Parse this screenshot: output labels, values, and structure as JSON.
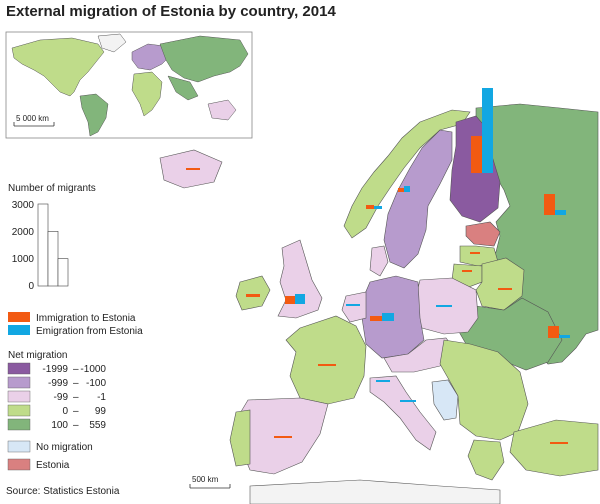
{
  "title": "External migration of Estonia by country, 2014",
  "source": "Source: Statistics Estonia",
  "inset": {
    "scale_label": "5 000 km"
  },
  "main_map": {
    "scale_label": "500 km"
  },
  "migrants_scale": {
    "title": "Number of migrants",
    "ticks": [
      "3000",
      "2000",
      "1000",
      "0"
    ],
    "values": [
      3000,
      2000,
      1000
    ]
  },
  "bar_legend": {
    "immigration": {
      "label": "Immigration to Estonia",
      "color": "#f25a12"
    },
    "emigration": {
      "label": "Emigration from Estonia",
      "color": "#12a7e2"
    }
  },
  "net_migration": {
    "title": "Net migration",
    "classes": [
      {
        "from": "-1999",
        "to": "-1000",
        "color": "#8a5aa0"
      },
      {
        "from": "-999",
        "to": "-100",
        "color": "#b79bcd"
      },
      {
        "from": "-99",
        "to": "-1",
        "color": "#ead0e8"
      },
      {
        "from": "0",
        "to": "99",
        "color": "#bfdc8a"
      },
      {
        "from": "100",
        "to": "559",
        "color": "#82b57b"
      }
    ],
    "no_migration": {
      "label": "No migration",
      "color": "#d7e7f6"
    },
    "estonia": {
      "label": "Estonia",
      "color": "#d98080"
    }
  },
  "map_colors": {
    "sea": "#ffffff",
    "outside": "#f3f3f3",
    "border": "#555555"
  }
}
